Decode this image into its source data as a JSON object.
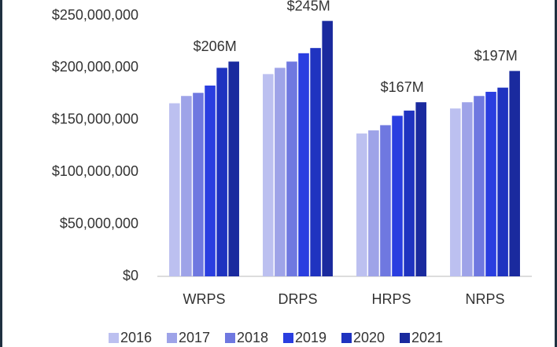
{
  "chart_data": {
    "type": "bar",
    "categories": [
      "WRPS",
      "DRPS",
      "HRPS",
      "NRPS"
    ],
    "series": [
      {
        "name": "2016",
        "color": "#bcc0f0",
        "values": [
          166000000,
          194000000,
          137000000,
          161000000
        ]
      },
      {
        "name": "2017",
        "color": "#9ea3e8",
        "values": [
          173000000,
          200000000,
          140000000,
          167000000
        ]
      },
      {
        "name": "2018",
        "color": "#6f78e0",
        "values": [
          176000000,
          206000000,
          145000000,
          173000000
        ]
      },
      {
        "name": "2019",
        "color": "#2a3ee0",
        "values": [
          183000000,
          214000000,
          154000000,
          177000000
        ]
      },
      {
        "name": "2020",
        "color": "#1f33c0",
        "values": [
          200000000,
          219000000,
          159000000,
          181000000
        ]
      },
      {
        "name": "2021",
        "color": "#1a2a9e",
        "values": [
          206000000,
          245000000,
          167000000,
          197000000
        ],
        "value_labels": [
          "$206M",
          "$245M",
          "$167M",
          "$197M"
        ]
      }
    ],
    "ylim": [
      0,
      250000000
    ],
    "yticks": [
      {
        "value": 0,
        "label": "$0"
      },
      {
        "value": 50000000,
        "label": "$50,000,000"
      },
      {
        "value": 100000000,
        "label": "$100,000,000"
      },
      {
        "value": 150000000,
        "label": "$150,000,000"
      },
      {
        "value": 200000000,
        "label": "$200,000,000"
      },
      {
        "value": 250000000,
        "label": "$250,000,000"
      }
    ],
    "grid": false,
    "legend": "bottom"
  }
}
